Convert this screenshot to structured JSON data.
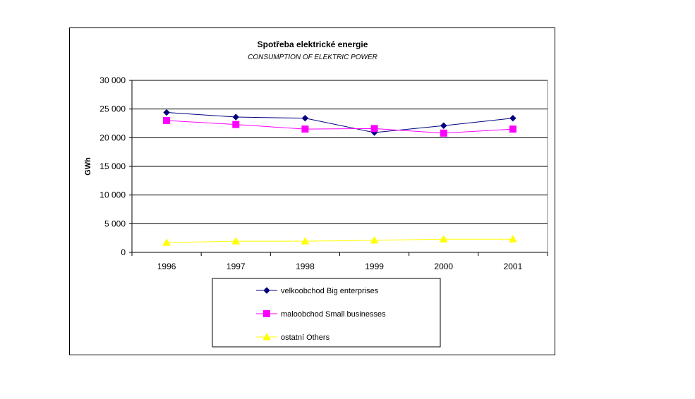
{
  "chart_data": {
    "type": "line",
    "title": "Spotřeba elektrické energie",
    "subtitle": "CONSUMPTION OF ELEKTRIC POWER",
    "ylabel": "GWh",
    "xlabel": "",
    "ylim": [
      0,
      30000
    ],
    "yticks": [
      0,
      5000,
      10000,
      15000,
      20000,
      25000,
      30000
    ],
    "ytick_labels": [
      "0",
      "5 000",
      "10 000",
      "15 000",
      "20 000",
      "25 000",
      "30 000"
    ],
    "categories": [
      "1996",
      "1997",
      "1998",
      "1999",
      "2000",
      "2001"
    ],
    "grid": "horizontal",
    "legend_position": "bottom",
    "series": [
      {
        "name": "velkoobchod  Big enterprises",
        "color": "#000080",
        "marker": "diamond",
        "values": [
          24400,
          23600,
          23400,
          20900,
          22100,
          23400
        ]
      },
      {
        "name": "maloobchod  Small businesses",
        "color": "#ff00ff",
        "marker": "square",
        "values": [
          23000,
          22300,
          21500,
          21600,
          20800,
          21500
        ]
      },
      {
        "name": "ostatní  Others",
        "color": "#ffff00",
        "marker": "triangle",
        "values": [
          1700,
          1950,
          1950,
          2100,
          2300,
          2300
        ]
      }
    ]
  }
}
